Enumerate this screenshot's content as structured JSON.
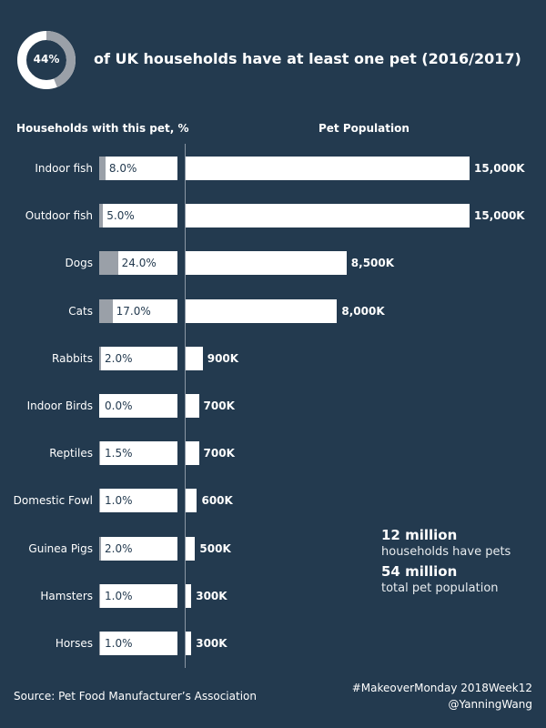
{
  "header": {
    "donut_value": 44,
    "donut_label": "44%",
    "title": "of UK households have at least one pet (2016/2017)"
  },
  "colors": {
    "background": "#233a4f",
    "bar": "#ffffff",
    "highlight": "#9aa0a8"
  },
  "chart_data": [
    {
      "type": "bar",
      "title": "Households with this pet, %",
      "orientation": "horizontal",
      "xlim": [
        0,
        100
      ],
      "categories": [
        "Indoor fish",
        "Outdoor fish",
        "Dogs",
        "Cats",
        "Rabbits",
        "Indoor Birds",
        "Reptiles",
        "Domestic Fowl",
        "Guinea Pigs",
        "Hamsters",
        "Horses"
      ],
      "values": [
        8.0,
        5.0,
        24.0,
        17.0,
        2.0,
        0.0,
        1.5,
        1.0,
        2.0,
        1.0,
        1.0
      ],
      "labels": [
        "8.0%",
        "5.0%",
        "24.0%",
        "17.0%",
        "2.0%",
        "0.0%",
        "1.5%",
        "1.0%",
        "2.0%",
        "1.0%",
        "1.0%"
      ]
    },
    {
      "type": "bar",
      "title": "Pet Population",
      "orientation": "horizontal",
      "unit": "K",
      "values": [
        15000,
        15000,
        8500,
        8000,
        900,
        700,
        700,
        600,
        500,
        300,
        300
      ],
      "labels": [
        "15,000K",
        "15,000K",
        "8,500K",
        "8,000K",
        "900K",
        "700K",
        "700K",
        "600K",
        "500K",
        "300K",
        "300K"
      ]
    }
  ],
  "summary": {
    "households": "12 million",
    "households_text": "households have pets",
    "population": "54 million",
    "population_text": "total pet population"
  },
  "footer": {
    "source": "Source: Pet Food Manufacturer’s Association",
    "tag": "#MakeoverMonday 2018Week12",
    "author": "@YanningWang"
  }
}
